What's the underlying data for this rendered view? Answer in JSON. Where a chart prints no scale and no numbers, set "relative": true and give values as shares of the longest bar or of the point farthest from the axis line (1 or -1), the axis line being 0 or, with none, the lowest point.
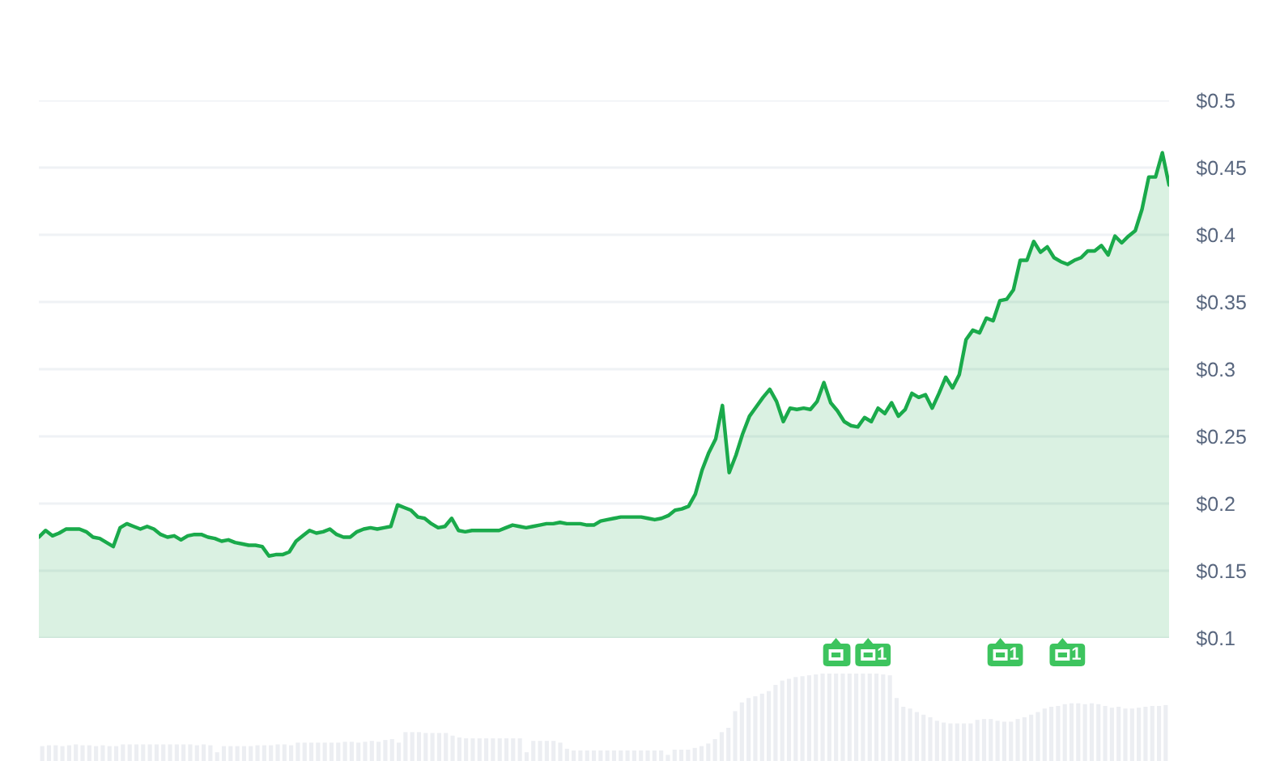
{
  "chart_data": [
    {
      "type": "area",
      "categories": [
        null,
        null,
        null,
        null,
        null,
        null,
        null,
        null,
        null,
        null,
        null,
        null,
        null,
        null,
        null,
        null,
        null,
        null,
        null,
        null,
        null,
        null,
        null,
        null,
        null,
        null,
        null,
        null,
        null,
        null,
        null,
        null,
        null,
        null,
        null,
        null,
        null,
        null,
        null,
        null,
        null,
        null,
        null,
        null,
        null,
        null,
        null,
        null,
        null,
        null,
        null,
        null,
        null,
        null,
        null,
        null,
        null,
        null,
        null,
        null,
        null,
        null,
        null,
        null,
        null,
        null,
        null,
        null,
        null,
        null,
        null,
        null,
        null,
        null,
        null,
        null,
        null,
        null,
        null,
        null,
        null,
        null,
        null,
        null,
        null,
        null,
        null,
        null,
        null,
        null,
        null,
        null,
        null,
        null,
        null,
        null,
        null,
        null,
        null,
        null,
        null,
        null,
        null,
        null,
        null,
        null,
        null,
        null,
        null,
        null,
        null,
        null,
        null,
        null,
        null,
        null,
        null,
        null,
        null,
        null,
        null,
        null,
        null,
        null,
        null,
        null,
        null,
        null,
        null,
        null,
        null,
        null,
        null,
        null,
        null,
        null,
        null,
        null,
        null,
        null,
        null,
        null,
        null,
        null,
        null,
        null,
        null,
        null,
        null,
        null,
        null,
        null,
        null,
        null,
        null,
        null,
        null,
        null,
        null,
        null,
        null,
        null,
        null,
        null,
        null,
        null,
        null,
        null
      ],
      "series": [
        {
          "color": "#1aaa4b",
          "values": [
            0.175,
            0.18,
            0.176,
            0.178,
            0.181,
            0.181,
            0.181,
            0.179,
            0.175,
            0.174,
            0.171,
            0.168,
            0.182,
            0.185,
            0.183,
            0.181,
            0.183,
            0.181,
            0.177,
            0.175,
            0.176,
            0.173,
            0.176,
            0.177,
            0.177,
            0.175,
            0.174,
            0.172,
            0.173,
            0.171,
            0.17,
            0.169,
            0.169,
            0.168,
            0.161,
            0.162,
            0.162,
            0.164,
            0.172,
            0.176,
            0.18,
            0.178,
            0.179,
            0.181,
            0.177,
            0.175,
            0.175,
            0.179,
            0.181,
            0.182,
            0.181,
            0.182,
            0.183,
            0.199,
            0.197,
            0.195,
            0.19,
            0.189,
            0.185,
            0.182,
            0.183,
            0.189,
            0.18,
            0.179,
            0.18,
            0.18,
            0.18,
            0.18,
            0.18,
            0.182,
            0.184,
            0.183,
            0.182,
            0.183,
            0.184,
            0.185,
            0.185,
            0.186,
            0.185,
            0.185,
            0.185,
            0.184,
            0.184,
            0.187,
            0.188,
            0.189,
            0.19,
            0.19,
            0.19,
            0.19,
            0.189,
            0.188,
            0.189,
            0.191,
            0.195,
            0.196,
            0.198,
            0.207,
            0.225,
            0.238,
            0.248,
            0.273,
            0.223,
            0.236,
            0.252,
            0.265,
            0.272,
            0.279,
            0.285,
            0.276,
            0.261,
            0.271,
            0.27,
            0.271,
            0.27,
            0.276,
            0.29,
            0.275,
            0.269,
            0.261,
            0.258,
            0.257,
            0.264,
            0.261,
            0.271,
            0.267,
            0.275,
            0.265,
            0.27,
            0.282,
            0.279,
            0.281,
            0.271,
            0.282,
            0.294,
            0.286,
            0.296,
            0.322,
            0.329,
            0.327,
            0.338,
            0.336,
            0.351,
            0.352,
            0.359,
            0.381,
            0.381,
            0.395,
            0.387,
            0.391,
            0.383,
            0.38,
            0.378,
            0.381,
            0.383,
            0.388,
            0.388,
            0.392,
            0.385,
            0.399,
            0.394,
            0.399,
            0.403,
            0.419,
            0.443,
            0.443,
            0.461,
            0.437
          ]
        }
      ],
      "ylim": [
        0.1,
        0.5
      ],
      "yticks": [
        {
          "value": 0.1,
          "label": "$0.1"
        },
        {
          "value": 0.15,
          "label": "$0.15"
        },
        {
          "value": 0.2,
          "label": "$0.2"
        },
        {
          "value": 0.25,
          "label": "$0.25"
        },
        {
          "value": 0.3,
          "label": "$0.3"
        },
        {
          "value": 0.35,
          "label": "$0.35"
        },
        {
          "value": 0.4,
          "label": "$0.4"
        },
        {
          "value": 0.45,
          "label": "$0.45"
        },
        {
          "value": 0.5,
          "label": "$0.5"
        }
      ],
      "grid": "y",
      "tick_labels": "y"
    },
    {
      "type": "bar",
      "relative": true,
      "categories": [
        null,
        null,
        null,
        null,
        null,
        null,
        null,
        null,
        null,
        null,
        null,
        null,
        null,
        null,
        null,
        null,
        null,
        null,
        null,
        null,
        null,
        null,
        null,
        null,
        null,
        null,
        null,
        null,
        null,
        null,
        null,
        null,
        null,
        null,
        null,
        null,
        null,
        null,
        null,
        null,
        null,
        null,
        null,
        null,
        null,
        null,
        null,
        null,
        null,
        null,
        null,
        null,
        null,
        null,
        null,
        null,
        null,
        null,
        null,
        null,
        null,
        null,
        null,
        null,
        null,
        null,
        null,
        null,
        null,
        null,
        null,
        null,
        null,
        null,
        null,
        null,
        null,
        null,
        null,
        null,
        null,
        null,
        null,
        null,
        null,
        null,
        null,
        null,
        null,
        null,
        null,
        null,
        null,
        null,
        null,
        null,
        null,
        null,
        null,
        null,
        null,
        null,
        null,
        null,
        null,
        null,
        null,
        null,
        null,
        null,
        null,
        null,
        null,
        null,
        null,
        null,
        null,
        null,
        null,
        null,
        null,
        null,
        null,
        null,
        null,
        null,
        null,
        null,
        null,
        null,
        null,
        null,
        null,
        null,
        null,
        null,
        null,
        null,
        null,
        null,
        null,
        null,
        null,
        null,
        null,
        null,
        null,
        null,
        null,
        null,
        null,
        null,
        null,
        null,
        null,
        null,
        null,
        null,
        null,
        null,
        null,
        null,
        null,
        null,
        null,
        null,
        null,
        null
      ],
      "series": [
        {
          "color": "#eceef2",
          "values": [
            0.17,
            0.18,
            0.18,
            0.17,
            0.18,
            0.19,
            0.18,
            0.18,
            0.17,
            0.18,
            0.17,
            0.17,
            0.19,
            0.19,
            0.19,
            0.19,
            0.19,
            0.19,
            0.19,
            0.19,
            0.19,
            0.19,
            0.19,
            0.18,
            0.19,
            0.18,
            0.1,
            0.17,
            0.17,
            0.17,
            0.17,
            0.17,
            0.18,
            0.18,
            0.18,
            0.19,
            0.19,
            0.18,
            0.21,
            0.21,
            0.21,
            0.21,
            0.21,
            0.21,
            0.21,
            0.22,
            0.22,
            0.21,
            0.22,
            0.23,
            0.22,
            0.24,
            0.25,
            0.21,
            0.33,
            0.33,
            0.33,
            0.32,
            0.32,
            0.32,
            0.32,
            0.29,
            0.27,
            0.26,
            0.26,
            0.26,
            0.26,
            0.26,
            0.26,
            0.26,
            0.26,
            0.26,
            0.1,
            0.23,
            0.23,
            0.23,
            0.23,
            0.21,
            0.14,
            0.12,
            0.12,
            0.12,
            0.12,
            0.12,
            0.12,
            0.12,
            0.12,
            0.12,
            0.12,
            0.12,
            0.12,
            0.12,
            0.12,
            0.07,
            0.13,
            0.13,
            0.13,
            0.15,
            0.17,
            0.2,
            0.25,
            0.33,
            0.38,
            0.57,
            0.67,
            0.72,
            0.74,
            0.77,
            0.8,
            0.87,
            0.92,
            0.94,
            0.96,
            0.97,
            0.98,
            0.99,
            1,
            1,
            1,
            1,
            1,
            1,
            1,
            1,
            1,
            0.99,
            0.98,
            0.72,
            0.62,
            0.6,
            0.56,
            0.53,
            0.5,
            0.46,
            0.44,
            0.43,
            0.43,
            0.43,
            0.43,
            0.47,
            0.48,
            0.48,
            0.46,
            0.45,
            0.45,
            0.48,
            0.5,
            0.53,
            0.56,
            0.6,
            0.62,
            0.63,
            0.65,
            0.66,
            0.66,
            0.65,
            0.66,
            0.65,
            0.63,
            0.61,
            0.62,
            0.6,
            0.6,
            0.61,
            0.62,
            0.63,
            0.63,
            0.64
          ]
        }
      ],
      "annotations": [
        "1",
        "1",
        "1"
      ],
      "tick_labels": false
    }
  ]
}
